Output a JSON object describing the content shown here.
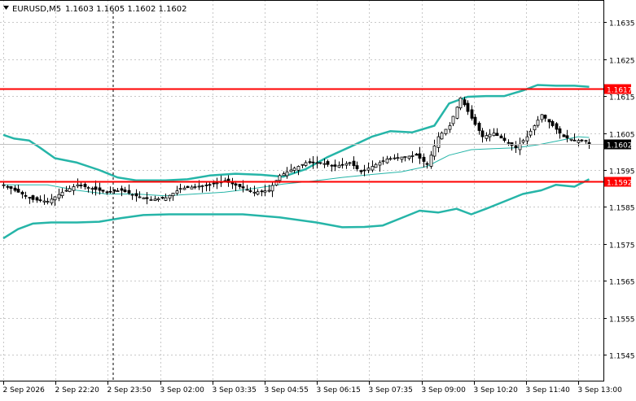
{
  "header": {
    "symbol_label": "EURUSD,M5",
    "ohlc_label": "1.1603 1.1605 1.1602 1.1602"
  },
  "chart_data": {
    "type": "line",
    "title": "EURUSD,M5",
    "ohlc": {
      "open": 1.1603,
      "high": 1.1605,
      "low": 1.1602,
      "close": 1.1602
    },
    "xlabel": "",
    "ylabel": "",
    "ylim": [
      1.1538,
      1.1641
    ],
    "grid": true,
    "y_ticks": [
      "1.1635",
      "1.1625",
      "1.1615",
      "1.1605",
      "1.1595",
      "1.1585",
      "1.1575",
      "1.1565",
      "1.1555",
      "1.1545"
    ],
    "x_ticks": [
      "2 Sep 2026",
      "2 Sep 22:20",
      "2 Sep 23:50",
      "3 Sep 02:00",
      "3 Sep 03:35",
      "3 Sep 04:55",
      "3 Sep 06:15",
      "3 Sep 07:35",
      "3 Sep 09:00",
      "3 Sep 10:20",
      "3 Sep 11:40",
      "3 Sep 13:00"
    ],
    "horizontal_levels": [
      {
        "value": 1.1617,
        "label": "1.1617",
        "color": "#ff0000"
      },
      {
        "value": 1.1592,
        "label": "1.1592",
        "color": "#ff0000"
      }
    ],
    "current_price": {
      "value": 1.1602,
      "label": "1.1602",
      "color": "#000000"
    },
    "series": [
      {
        "role": "upper_band",
        "color": "#26b5a8",
        "points": [
          [
            0,
            1.16045
          ],
          [
            3,
            1.16035
          ],
          [
            7,
            1.1603
          ],
          [
            10,
            1.1601
          ],
          [
            14,
            1.15982
          ],
          [
            20,
            1.1597
          ],
          [
            26,
            1.1595
          ],
          [
            31,
            1.1593
          ],
          [
            36,
            1.15922
          ],
          [
            44,
            1.15922
          ],
          [
            50,
            1.15925
          ],
          [
            56,
            1.15935
          ],
          [
            63,
            1.1594
          ],
          [
            70,
            1.15937
          ],
          [
            76,
            1.15932
          ],
          [
            82,
            1.15952
          ],
          [
            88,
            1.15985
          ],
          [
            94,
            1.16012
          ],
          [
            100,
            1.1604
          ],
          [
            105,
            1.16055
          ],
          [
            111,
            1.16052
          ],
          [
            117,
            1.1607
          ],
          [
            121,
            1.1613
          ],
          [
            126,
            1.16148
          ],
          [
            131,
            1.1615
          ],
          [
            136,
            1.1615
          ],
          [
            141,
            1.16165
          ],
          [
            145,
            1.1618
          ],
          [
            150,
            1.16178
          ],
          [
            155,
            1.16178
          ],
          [
            159,
            1.16175
          ]
        ]
      },
      {
        "role": "middle_band",
        "color": "#26b5a8",
        "points": [
          [
            0,
            1.1591
          ],
          [
            6,
            1.1591
          ],
          [
            12,
            1.1591
          ],
          [
            20,
            1.15895
          ],
          [
            28,
            1.15885
          ],
          [
            36,
            1.15885
          ],
          [
            44,
            1.1588
          ],
          [
            52,
            1.15885
          ],
          [
            60,
            1.1589
          ],
          [
            68,
            1.159
          ],
          [
            76,
            1.15912
          ],
          [
            84,
            1.1592
          ],
          [
            92,
            1.1593
          ],
          [
            100,
            1.15938
          ],
          [
            108,
            1.15945
          ],
          [
            115,
            1.1596
          ],
          [
            121,
            1.1599
          ],
          [
            127,
            1.16005
          ],
          [
            133,
            1.16008
          ],
          [
            139,
            1.1601
          ],
          [
            145,
            1.16018
          ],
          [
            151,
            1.1603
          ],
          [
            156,
            1.1604
          ],
          [
            159,
            1.16038
          ]
        ]
      },
      {
        "role": "lower_band",
        "color": "#26b5a8",
        "points": [
          [
            0,
            1.15765
          ],
          [
            4,
            1.1579
          ],
          [
            8,
            1.15805
          ],
          [
            13,
            1.15808
          ],
          [
            20,
            1.15808
          ],
          [
            26,
            1.1581
          ],
          [
            32,
            1.1582
          ],
          [
            38,
            1.15828
          ],
          [
            45,
            1.1583
          ],
          [
            55,
            1.1583
          ],
          [
            65,
            1.1583
          ],
          [
            75,
            1.15822
          ],
          [
            85,
            1.15808
          ],
          [
            92,
            1.15795
          ],
          [
            98,
            1.15796
          ],
          [
            103,
            1.158
          ],
          [
            108,
            1.1582
          ],
          [
            113,
            1.1584
          ],
          [
            118,
            1.15835
          ],
          [
            123,
            1.15845
          ],
          [
            127,
            1.1583
          ],
          [
            131,
            1.15845
          ],
          [
            136,
            1.15865
          ],
          [
            141,
            1.15885
          ],
          [
            146,
            1.15895
          ],
          [
            150,
            1.1591
          ],
          [
            155,
            1.15905
          ],
          [
            159,
            1.15925
          ]
        ]
      },
      {
        "role": "close",
        "points": [
          [
            0,
            1.1591
          ],
          [
            4,
            1.1589
          ],
          [
            8,
            1.1587
          ],
          [
            12,
            1.15865
          ],
          [
            16,
            1.1589
          ],
          [
            20,
            1.1591
          ],
          [
            24,
            1.159
          ],
          [
            28,
            1.1589
          ],
          [
            32,
            1.15895
          ],
          [
            36,
            1.1588
          ],
          [
            40,
            1.1587
          ],
          [
            44,
            1.15875
          ],
          [
            48,
            1.159
          ],
          [
            52,
            1.15905
          ],
          [
            56,
            1.1591
          ],
          [
            60,
            1.1592
          ],
          [
            64,
            1.15905
          ],
          [
            68,
            1.1589
          ],
          [
            72,
            1.15895
          ],
          [
            75,
            1.15935
          ],
          [
            78,
            1.1595
          ],
          [
            82,
            1.1597
          ],
          [
            86,
            1.1597
          ],
          [
            90,
            1.1596
          ],
          [
            94,
            1.1597
          ],
          [
            97,
            1.15945
          ],
          [
            100,
            1.1596
          ],
          [
            104,
            1.1598
          ],
          [
            108,
            1.15985
          ],
          [
            112,
            1.1599
          ],
          [
            115,
            1.15965
          ],
          [
            118,
            1.1604
          ],
          [
            121,
            1.1607
          ],
          [
            124,
            1.16145
          ],
          [
            127,
            1.1609
          ],
          [
            130,
            1.1604
          ],
          [
            133,
            1.1605
          ],
          [
            136,
            1.1603
          ],
          [
            139,
            1.1601
          ],
          [
            142,
            1.1604
          ],
          [
            146,
            1.161
          ],
          [
            149,
            1.1607
          ],
          [
            152,
            1.1604
          ],
          [
            155,
            1.1603
          ],
          [
            158,
            1.1603
          ],
          [
            159,
            1.1602
          ]
        ]
      }
    ]
  }
}
